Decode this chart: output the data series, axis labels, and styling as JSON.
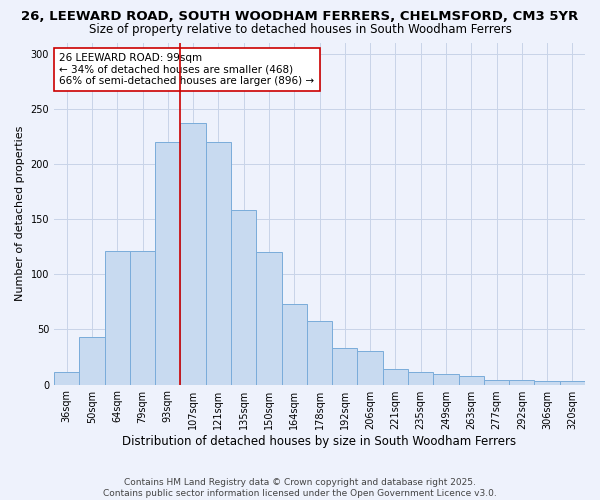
{
  "title1": "26, LEEWARD ROAD, SOUTH WOODHAM FERRERS, CHELMSFORD, CM3 5YR",
  "title2": "Size of property relative to detached houses in South Woodham Ferrers",
  "xlabel": "Distribution of detached houses by size in South Woodham Ferrers",
  "ylabel": "Number of detached properties",
  "categories": [
    "36sqm",
    "50sqm",
    "64sqm",
    "79sqm",
    "93sqm",
    "107sqm",
    "121sqm",
    "135sqm",
    "150sqm",
    "164sqm",
    "178sqm",
    "192sqm",
    "206sqm",
    "221sqm",
    "235sqm",
    "249sqm",
    "263sqm",
    "277sqm",
    "292sqm",
    "306sqm",
    "320sqm"
  ],
  "values": [
    11,
    43,
    121,
    121,
    220,
    237,
    220,
    158,
    120,
    73,
    58,
    33,
    30,
    14,
    11,
    10,
    8,
    4,
    4,
    3,
    3
  ],
  "bar_color": "#c8daf0",
  "bar_edge_color": "#7aacda",
  "grid_color": "#c8d4e8",
  "bg_color": "#eef2fc",
  "vline_x": 4.5,
  "vline_color": "#cc0000",
  "annotation_text": "26 LEEWARD ROAD: 99sqm\n← 34% of detached houses are smaller (468)\n66% of semi-detached houses are larger (896) →",
  "annotation_box_color": "#ffffff",
  "annotation_box_edge_color": "#cc0000",
  "footer1": "Contains HM Land Registry data © Crown copyright and database right 2025.",
  "footer2": "Contains public sector information licensed under the Open Government Licence v3.0.",
  "ylim": [
    0,
    310
  ],
  "yticks": [
    0,
    50,
    100,
    150,
    200,
    250,
    300
  ],
  "title1_fontsize": 9.5,
  "title2_fontsize": 8.5,
  "xlabel_fontsize": 8.5,
  "ylabel_fontsize": 8,
  "tick_fontsize": 7,
  "annotation_fontsize": 7.5,
  "footer_fontsize": 6.5
}
